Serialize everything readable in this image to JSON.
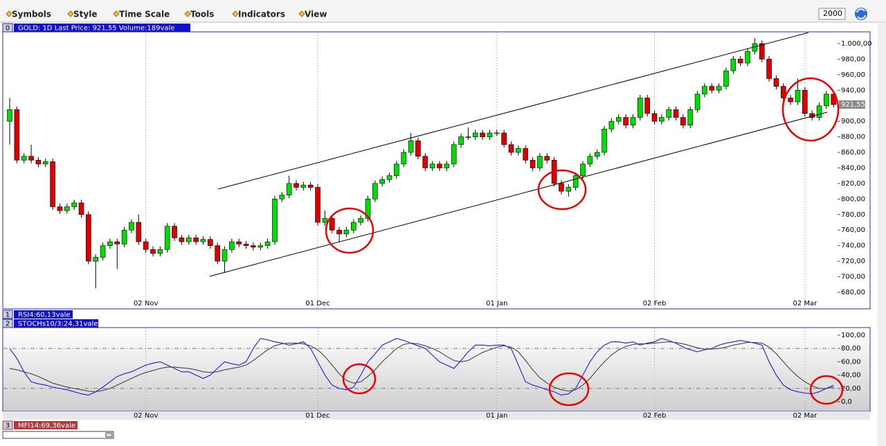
{
  "menu": [
    "Symbols",
    "Style",
    "Time Scale",
    "Tools",
    "Indicators",
    "View"
  ],
  "zoom_input": "2000",
  "panels": [
    {
      "number": "0",
      "label": "GOLD: 1D Last Price: 921,55 Volume:189vale"
    },
    {
      "number": "1",
      "label": "RSI4:60,13vale"
    },
    {
      "number": "2",
      "label": "STOCHs10/3:24,31vale"
    },
    {
      "number": "3",
      "label": "MFI14:69,36vale"
    }
  ],
  "chart_data": [
    {
      "type": "candlestick",
      "categories": [
        null,
        null,
        null,
        null,
        null,
        null,
        null,
        null,
        null,
        null,
        null,
        null,
        null,
        null,
        null,
        null,
        null,
        null,
        null,
        "02 Nov",
        null,
        null,
        null,
        null,
        null,
        null,
        null,
        null,
        null,
        null,
        null,
        null,
        null,
        null,
        null,
        null,
        null,
        null,
        null,
        null,
        null,
        null,
        null,
        "01 Dec",
        null,
        null,
        null,
        null,
        null,
        null,
        null,
        null,
        null,
        null,
        null,
        null,
        null,
        null,
        null,
        null,
        null,
        null,
        null,
        null,
        null,
        null,
        null,
        null,
        "01 Jan",
        null,
        null,
        null,
        null,
        null,
        null,
        null,
        null,
        null,
        null,
        null,
        null,
        null,
        null,
        null,
        null,
        null,
        null,
        null,
        null,
        null,
        "02 Feb",
        null,
        null,
        null,
        null,
        null,
        null,
        null,
        null,
        null,
        null,
        null,
        null,
        null,
        null,
        null,
        null,
        null,
        null,
        null,
        null,
        "02 Mar",
        null,
        null,
        null,
        null
      ],
      "open": [
        900,
        915,
        850,
        855,
        850,
        845,
        848,
        790,
        785,
        790,
        795,
        780,
        720,
        725,
        740,
        745,
        742,
        760,
        770,
        745,
        735,
        730,
        735,
        765,
        750,
        745,
        750,
        745,
        748,
        740,
        720,
        735,
        745,
        742,
        740,
        738,
        740,
        745,
        800,
        805,
        820,
        815,
        818,
        815,
        770,
        775,
        760,
        755,
        760,
        770,
        775,
        800,
        820,
        825,
        830,
        845,
        860,
        875,
        855,
        840,
        845,
        840,
        845,
        870,
        880,
        880,
        885,
        880,
        885,
        885,
        870,
        860,
        865,
        850,
        840,
        855,
        850,
        820,
        810,
        815,
        830,
        845,
        855,
        860,
        890,
        900,
        905,
        895,
        905,
        930,
        910,
        900,
        905,
        915,
        905,
        895,
        915,
        935,
        945,
        940,
        945,
        965,
        980,
        975,
        990,
        1000,
        980,
        955,
        945,
        930,
        925,
        940,
        910,
        905,
        920,
        935
      ],
      "high": [
        930,
        919,
        859,
        870,
        854,
        852,
        852,
        794,
        794,
        799,
        799,
        784,
        729,
        744,
        749,
        749,
        764,
        774,
        780,
        749,
        739,
        739,
        769,
        769,
        754,
        754,
        754,
        752,
        752,
        744,
        739,
        749,
        749,
        746,
        744,
        744,
        749,
        804,
        809,
        830,
        824,
        822,
        822,
        819,
        785,
        779,
        764,
        764,
        774,
        779,
        804,
        824,
        829,
        834,
        849,
        864,
        885,
        879,
        859,
        849,
        849,
        849,
        874,
        884,
        892,
        889,
        889,
        889,
        889,
        889,
        874,
        869,
        869,
        854,
        859,
        859,
        854,
        824,
        819,
        834,
        849,
        859,
        864,
        894,
        904,
        909,
        909,
        909,
        934,
        934,
        914,
        909,
        919,
        919,
        909,
        919,
        939,
        949,
        949,
        949,
        969,
        984,
        984,
        994,
        1007,
        1004,
        984,
        959,
        949,
        934,
        955,
        944,
        914,
        924,
        939,
        939
      ],
      "low": [
        870,
        846,
        846,
        846,
        841,
        841,
        786,
        781,
        781,
        786,
        776,
        716,
        685,
        721,
        736,
        710,
        738,
        756,
        741,
        731,
        726,
        726,
        731,
        746,
        741,
        741,
        741,
        741,
        736,
        716,
        705,
        731,
        738,
        736,
        734,
        734,
        736,
        741,
        796,
        801,
        811,
        811,
        811,
        766,
        766,
        756,
        745,
        751,
        756,
        766,
        771,
        796,
        816,
        821,
        826,
        841,
        856,
        851,
        836,
        836,
        836,
        836,
        841,
        866,
        876,
        876,
        876,
        876,
        881,
        866,
        856,
        856,
        846,
        836,
        836,
        846,
        816,
        806,
        803,
        811,
        826,
        841,
        851,
        856,
        886,
        896,
        891,
        891,
        901,
        906,
        896,
        896,
        901,
        901,
        891,
        891,
        911,
        931,
        936,
        936,
        941,
        961,
        971,
        971,
        986,
        976,
        951,
        941,
        926,
        921,
        921,
        906,
        901,
        901,
        916,
        918
      ],
      "close": [
        915,
        850,
        855,
        850,
        845,
        848,
        790,
        785,
        790,
        795,
        780,
        720,
        725,
        740,
        745,
        742,
        760,
        770,
        745,
        735,
        730,
        735,
        765,
        750,
        745,
        750,
        745,
        748,
        740,
        720,
        735,
        745,
        742,
        740,
        738,
        740,
        745,
        800,
        805,
        820,
        815,
        818,
        815,
        770,
        775,
        760,
        755,
        760,
        770,
        775,
        800,
        820,
        825,
        830,
        845,
        860,
        875,
        855,
        840,
        845,
        840,
        845,
        870,
        880,
        880,
        885,
        880,
        885,
        885,
        870,
        860,
        865,
        850,
        840,
        855,
        850,
        820,
        810,
        815,
        830,
        845,
        855,
        860,
        890,
        900,
        905,
        895,
        905,
        930,
        910,
        900,
        905,
        915,
        905,
        895,
        915,
        935,
        945,
        940,
        945,
        965,
        980,
        975,
        990,
        1000,
        980,
        955,
        945,
        930,
        925,
        940,
        910,
        905,
        920,
        935,
        921.55
      ],
      "up_color": "#00dd00",
      "down_color": "#dd0000",
      "last_price": {
        "value": 921.55,
        "label": "921,55"
      },
      "ylim": [
        659.5,
        1014.2
      ],
      "yticks": [
        {
          "value": 680,
          "label": "680,00"
        },
        {
          "value": 700,
          "label": "700,00"
        },
        {
          "value": 720,
          "label": "720,00"
        },
        {
          "value": 740,
          "label": "740,00"
        },
        {
          "value": 760,
          "label": "760,00"
        },
        {
          "value": 780,
          "label": "780,00"
        },
        {
          "value": 800,
          "label": "800,00"
        },
        {
          "value": 820,
          "label": "820,00"
        },
        {
          "value": 840,
          "label": "840,00"
        },
        {
          "value": 860,
          "label": "860,00"
        },
        {
          "value": 880,
          "label": "880,00"
        },
        {
          "value": 900,
          "label": "900,00"
        },
        {
          "value": 920,
          "label": "920,00"
        },
        {
          "value": 940,
          "label": "940,00"
        },
        {
          "value": 960,
          "label": "960,00"
        },
        {
          "value": 980,
          "label": "980,00"
        },
        {
          "value": 1000,
          "label": "1.000,00"
        }
      ],
      "grid": true
    },
    {
      "type": "line",
      "categories": [
        null,
        null,
        null,
        null,
        null,
        null,
        null,
        null,
        null,
        null,
        null,
        null,
        null,
        null,
        null,
        null,
        null,
        null,
        null,
        "02 Nov",
        null,
        null,
        null,
        null,
        null,
        null,
        null,
        null,
        null,
        null,
        null,
        null,
        null,
        null,
        null,
        null,
        null,
        null,
        null,
        null,
        null,
        null,
        null,
        "01 Dec",
        null,
        null,
        null,
        null,
        null,
        null,
        null,
        null,
        null,
        null,
        null,
        null,
        null,
        null,
        null,
        null,
        null,
        null,
        null,
        null,
        null,
        null,
        null,
        null,
        "01 Jan",
        null,
        null,
        null,
        null,
        null,
        null,
        null,
        null,
        null,
        null,
        null,
        null,
        null,
        null,
        null,
        null,
        null,
        null,
        null,
        null,
        null,
        "02 Feb",
        null,
        null,
        null,
        null,
        null,
        null,
        null,
        null,
        null,
        null,
        null,
        null,
        null,
        null,
        null,
        null,
        null,
        null,
        null,
        null,
        "02 Mar",
        null,
        null,
        null,
        null
      ],
      "series": [
        {
          "color": "#1a1aee",
          "values": [
            80,
            65,
            45,
            30,
            27,
            25,
            22,
            20,
            18,
            15,
            12,
            10,
            15,
            22,
            30,
            38,
            42,
            45,
            50,
            55,
            58,
            60,
            55,
            50,
            45,
            45,
            40,
            35,
            40,
            50,
            60,
            57,
            55,
            60,
            80,
            95,
            93,
            90,
            88,
            85,
            87,
            90,
            80,
            60,
            40,
            25,
            20,
            18,
            22,
            40,
            60,
            72,
            85,
            90,
            95,
            92,
            88,
            84,
            80,
            70,
            60,
            55,
            50,
            62,
            75,
            85,
            85,
            84,
            85,
            85,
            80,
            55,
            30,
            25,
            22,
            18,
            15,
            10,
            12,
            20,
            40,
            60,
            75,
            85,
            90,
            90,
            88,
            90,
            85,
            88,
            90,
            95,
            92,
            88,
            82,
            78,
            75,
            78,
            80,
            85,
            88,
            90,
            92,
            90,
            88,
            85,
            60,
            40,
            25,
            18,
            15,
            13,
            12,
            15,
            20,
            25
          ]
        },
        {
          "color": "#444444",
          "values": [
            50,
            48,
            45,
            42,
            38,
            33,
            28,
            25,
            22,
            20,
            18,
            16,
            15,
            17,
            20,
            25,
            30,
            35,
            40,
            44,
            47,
            50,
            52,
            52,
            51,
            50,
            48,
            45,
            44,
            45,
            48,
            50,
            52,
            55,
            62,
            70,
            78,
            84,
            87,
            88,
            88,
            87,
            84,
            78,
            68,
            55,
            42,
            32,
            28,
            30,
            38,
            48,
            60,
            70,
            80,
            86,
            88,
            87,
            84,
            80,
            75,
            68,
            62,
            60,
            62,
            68,
            74,
            78,
            82,
            84,
            82,
            75,
            62,
            48,
            36,
            28,
            22,
            18,
            16,
            18,
            25,
            35,
            48,
            60,
            70,
            78,
            83,
            86,
            87,
            87,
            88,
            89,
            90,
            89,
            87,
            84,
            81,
            79,
            79,
            80,
            82,
            85,
            87,
            89,
            89,
            88,
            82,
            72,
            60,
            48,
            38,
            30,
            24,
            20,
            20,
            22
          ]
        }
      ],
      "reference_lines": [
        20,
        80
      ],
      "ylim": [
        -14.4,
        110.3
      ],
      "yticks": [
        {
          "value": 0,
          "label": "0,0"
        },
        {
          "value": 20,
          "label": "20,00"
        },
        {
          "value": 40,
          "label": "40,00"
        },
        {
          "value": 60,
          "label": "60,00"
        },
        {
          "value": 80,
          "label": "80,00"
        },
        {
          "value": 100,
          "label": "100,00"
        }
      ],
      "grid": true
    }
  ]
}
